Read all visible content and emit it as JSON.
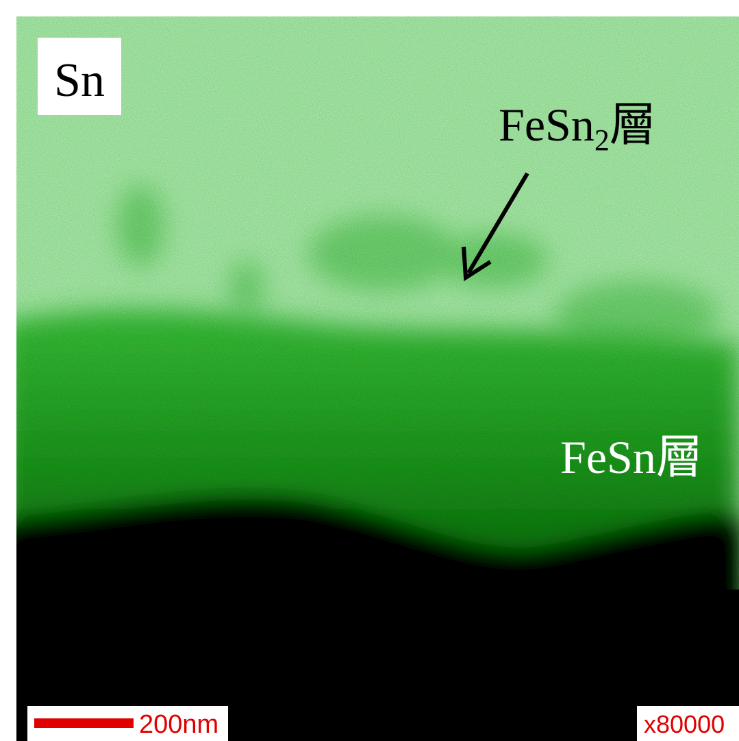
{
  "element_label": "Sn",
  "upper_layer_label": {
    "main": "FeSn",
    "sub": "2",
    "suffix": "層"
  },
  "lower_layer_label": "FeSn層",
  "scale_bar_label": "200nm",
  "magnification": "x80000"
}
